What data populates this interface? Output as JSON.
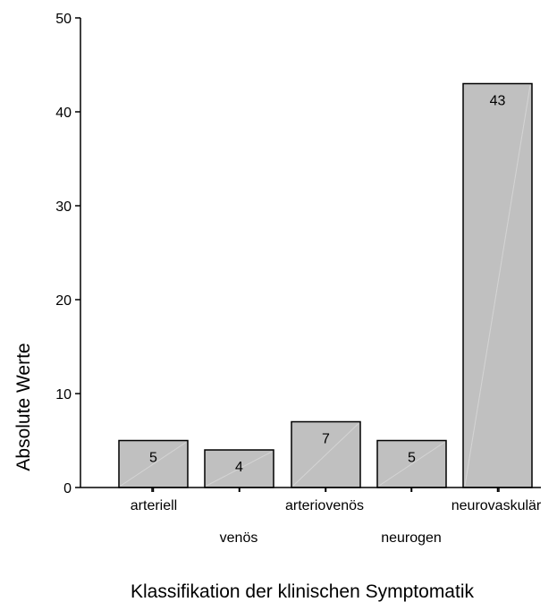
{
  "chart_data": {
    "type": "bar",
    "title": "",
    "xlabel": "Klassifikation der klinischen Symptomatik",
    "ylabel": "Absolute Werte",
    "categories": [
      "arteriell",
      "venös",
      "arteriovenös",
      "neurogen",
      "neurovaskulär"
    ],
    "values": [
      5,
      4,
      7,
      5,
      43
    ],
    "data_labels": [
      "5",
      "4",
      "7",
      "5",
      "43"
    ],
    "ylim": [
      0,
      50
    ],
    "yticks": [
      0,
      10,
      20,
      30,
      40,
      50
    ],
    "ytick_labels": [
      "0",
      "10",
      "20",
      "30",
      "40",
      "50"
    ],
    "grid": false,
    "legend": "none",
    "bar_color": "#c0c0c0",
    "bar_edge_color": "#000000"
  }
}
